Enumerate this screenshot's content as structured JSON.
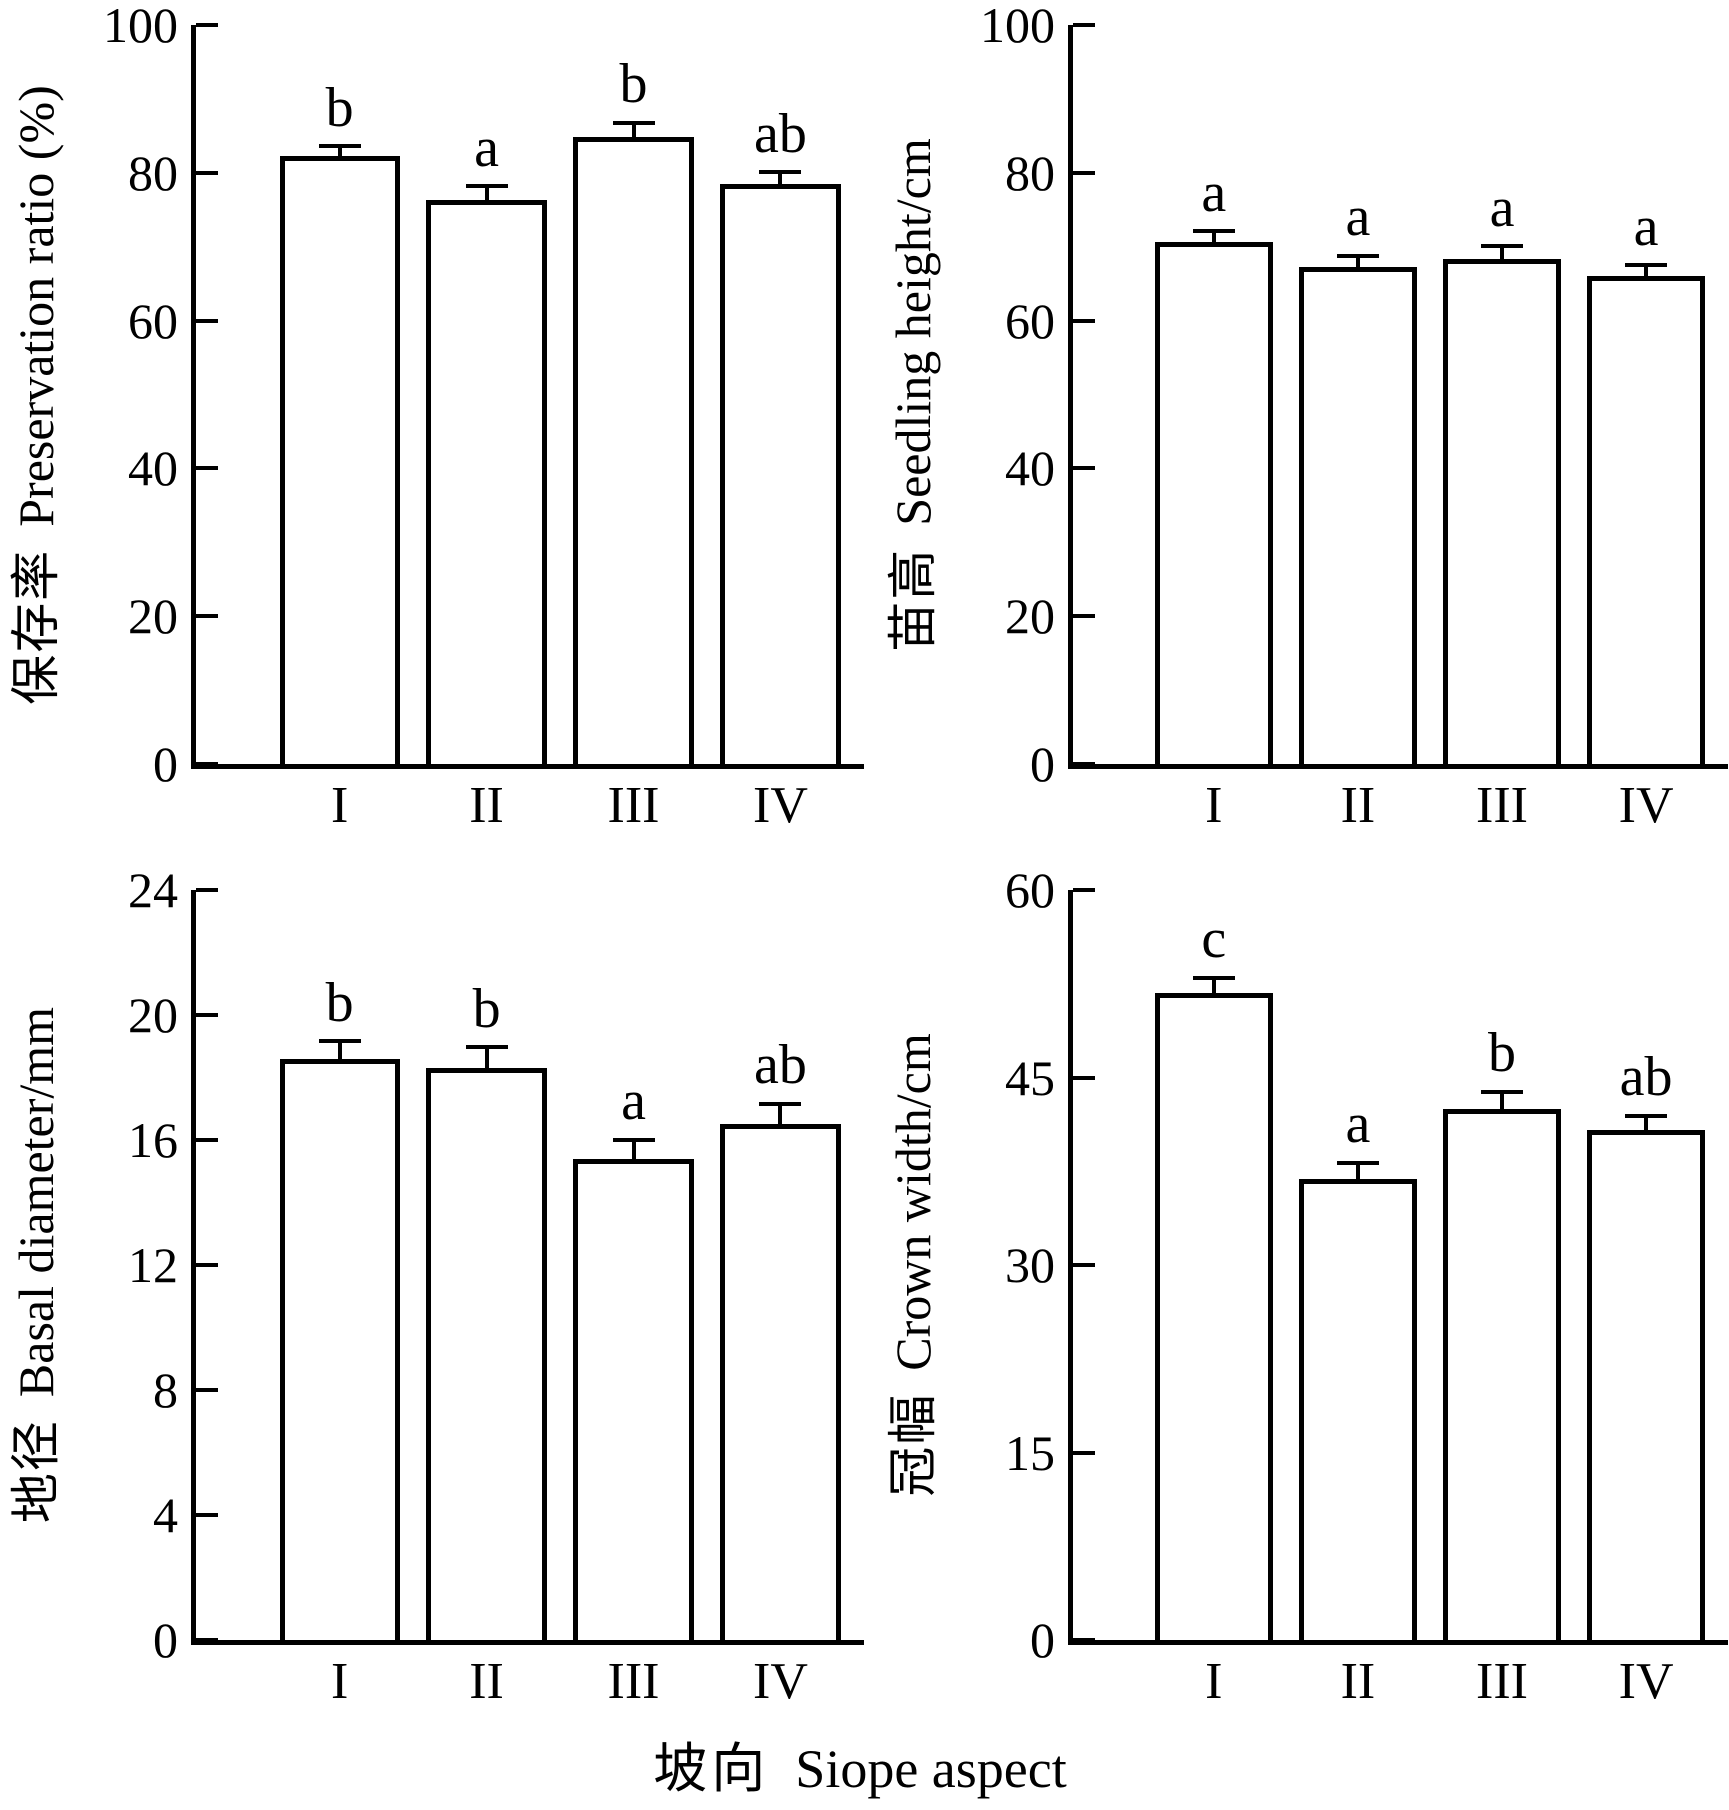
{
  "figure": {
    "background": "#ffffff",
    "ink": "#000000",
    "grid": false,
    "legend": false,
    "layout": "2x2 bar panels, shared x-axis title"
  },
  "xlabel": {
    "cn": "坡向",
    "en": "Siope aspect"
  },
  "chart_data": [
    {
      "type": "bar",
      "position": "top-left",
      "ylabel_cn": "保存率",
      "ylabel_en": "Preservation ratio (%)",
      "xlabel": "坡向 Siope aspect",
      "categories": [
        "I",
        "II",
        "III",
        "IV"
      ],
      "values": [
        82.3,
        76.3,
        84.9,
        78.5
      ],
      "errors": [
        1.0,
        1.6,
        1.6,
        1.3
      ],
      "sig_letters": [
        "b",
        "a",
        "b",
        "ab"
      ],
      "ylim": [
        0,
        100
      ],
      "yticks": [
        0,
        20,
        40,
        60,
        80,
        100
      ],
      "bar_fill": "#ffffff",
      "bar_edge": "#000000"
    },
    {
      "type": "bar",
      "position": "top-right",
      "ylabel_cn": "苗高",
      "ylabel_en": "Seedling height/cm",
      "xlabel": "坡向 Siope aspect",
      "categories": [
        "I",
        "II",
        "III",
        "IV"
      ],
      "values": [
        70.6,
        67.2,
        68.4,
        66.1
      ],
      "errors": [
        1.2,
        1.3,
        1.4,
        1.1
      ],
      "sig_letters": [
        "a",
        "a",
        "a",
        "a"
      ],
      "ylim": [
        0,
        100
      ],
      "yticks": [
        0,
        20,
        40,
        60,
        80,
        100
      ],
      "bar_fill": "#ffffff",
      "bar_edge": "#000000"
    },
    {
      "type": "bar",
      "position": "bottom-left",
      "ylabel_cn": "地径",
      "ylabel_en": "Basal diameter/mm",
      "xlabel": "坡向 Siope aspect",
      "categories": [
        "I",
        "II",
        "III",
        "IV"
      ],
      "values": [
        18.6,
        18.3,
        15.4,
        16.5
      ],
      "errors": [
        0.5,
        0.6,
        0.55,
        0.6
      ],
      "sig_letters": [
        "b",
        "b",
        "a",
        "ab"
      ],
      "ylim": [
        0,
        24
      ],
      "yticks": [
        0,
        4,
        8,
        12,
        16,
        20,
        24
      ],
      "bar_fill": "#ffffff",
      "bar_edge": "#000000"
    },
    {
      "type": "bar",
      "position": "bottom-right",
      "ylabel_cn": "冠幅",
      "ylabel_en": "Crown width/cm",
      "xlabel": "坡向 Siope aspect",
      "categories": [
        "I",
        "II",
        "III",
        "IV"
      ],
      "values": [
        51.8,
        36.9,
        42.5,
        40.8
      ],
      "errors": [
        1.0,
        1.1,
        1.2,
        1.0
      ],
      "sig_letters": [
        "c",
        "a",
        "b",
        "ab"
      ],
      "ylim": [
        0,
        60
      ],
      "yticks": [
        0,
        15,
        30,
        45,
        60
      ],
      "bar_fill": "#ffffff",
      "bar_edge": "#000000"
    }
  ]
}
